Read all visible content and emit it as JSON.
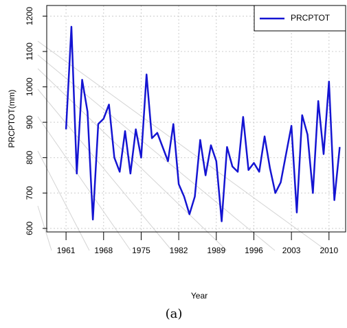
{
  "chart_data": {
    "type": "line",
    "caption": "(a)",
    "xlabel": "Year",
    "ylabel": "PRCPTOT(mm)",
    "x": [
      1961,
      1962,
      1963,
      1964,
      1965,
      1966,
      1967,
      1968,
      1969,
      1970,
      1971,
      1972,
      1973,
      1974,
      1975,
      1976,
      1977,
      1978,
      1979,
      1980,
      1981,
      1982,
      1983,
      1984,
      1985,
      1986,
      1987,
      1988,
      1989,
      1990,
      1991,
      1992,
      1993,
      1994,
      1995,
      1996,
      1997,
      1998,
      1999,
      2000,
      2001,
      2002,
      2003,
      2004,
      2005,
      2006,
      2007,
      2008,
      2009,
      2010,
      2011,
      2012
    ],
    "series": [
      {
        "name": "PRCPTOT",
        "color": "#1414d2",
        "values": [
          880,
          1170,
          755,
          1020,
          930,
          625,
          895,
          910,
          950,
          800,
          760,
          875,
          755,
          880,
          800,
          1035,
          855,
          870,
          830,
          790,
          895,
          725,
          690,
          640,
          690,
          850,
          750,
          835,
          790,
          620,
          830,
          775,
          760,
          915,
          765,
          785,
          760,
          860,
          770,
          700,
          730,
          810,
          890,
          645,
          920,
          865,
          700,
          960,
          810,
          1015,
          680,
          830
        ]
      }
    ],
    "xlim": [
      1957.4,
      2013.1
    ],
    "xticks": [
      1961,
      1968,
      1975,
      1982,
      1989,
      1996,
      2003,
      2010
    ],
    "ylim": [
      590,
      1230
    ],
    "yticks": [
      600,
      700,
      800,
      900,
      1000,
      1100,
      1200
    ],
    "grid": true,
    "legend": "top-right"
  }
}
